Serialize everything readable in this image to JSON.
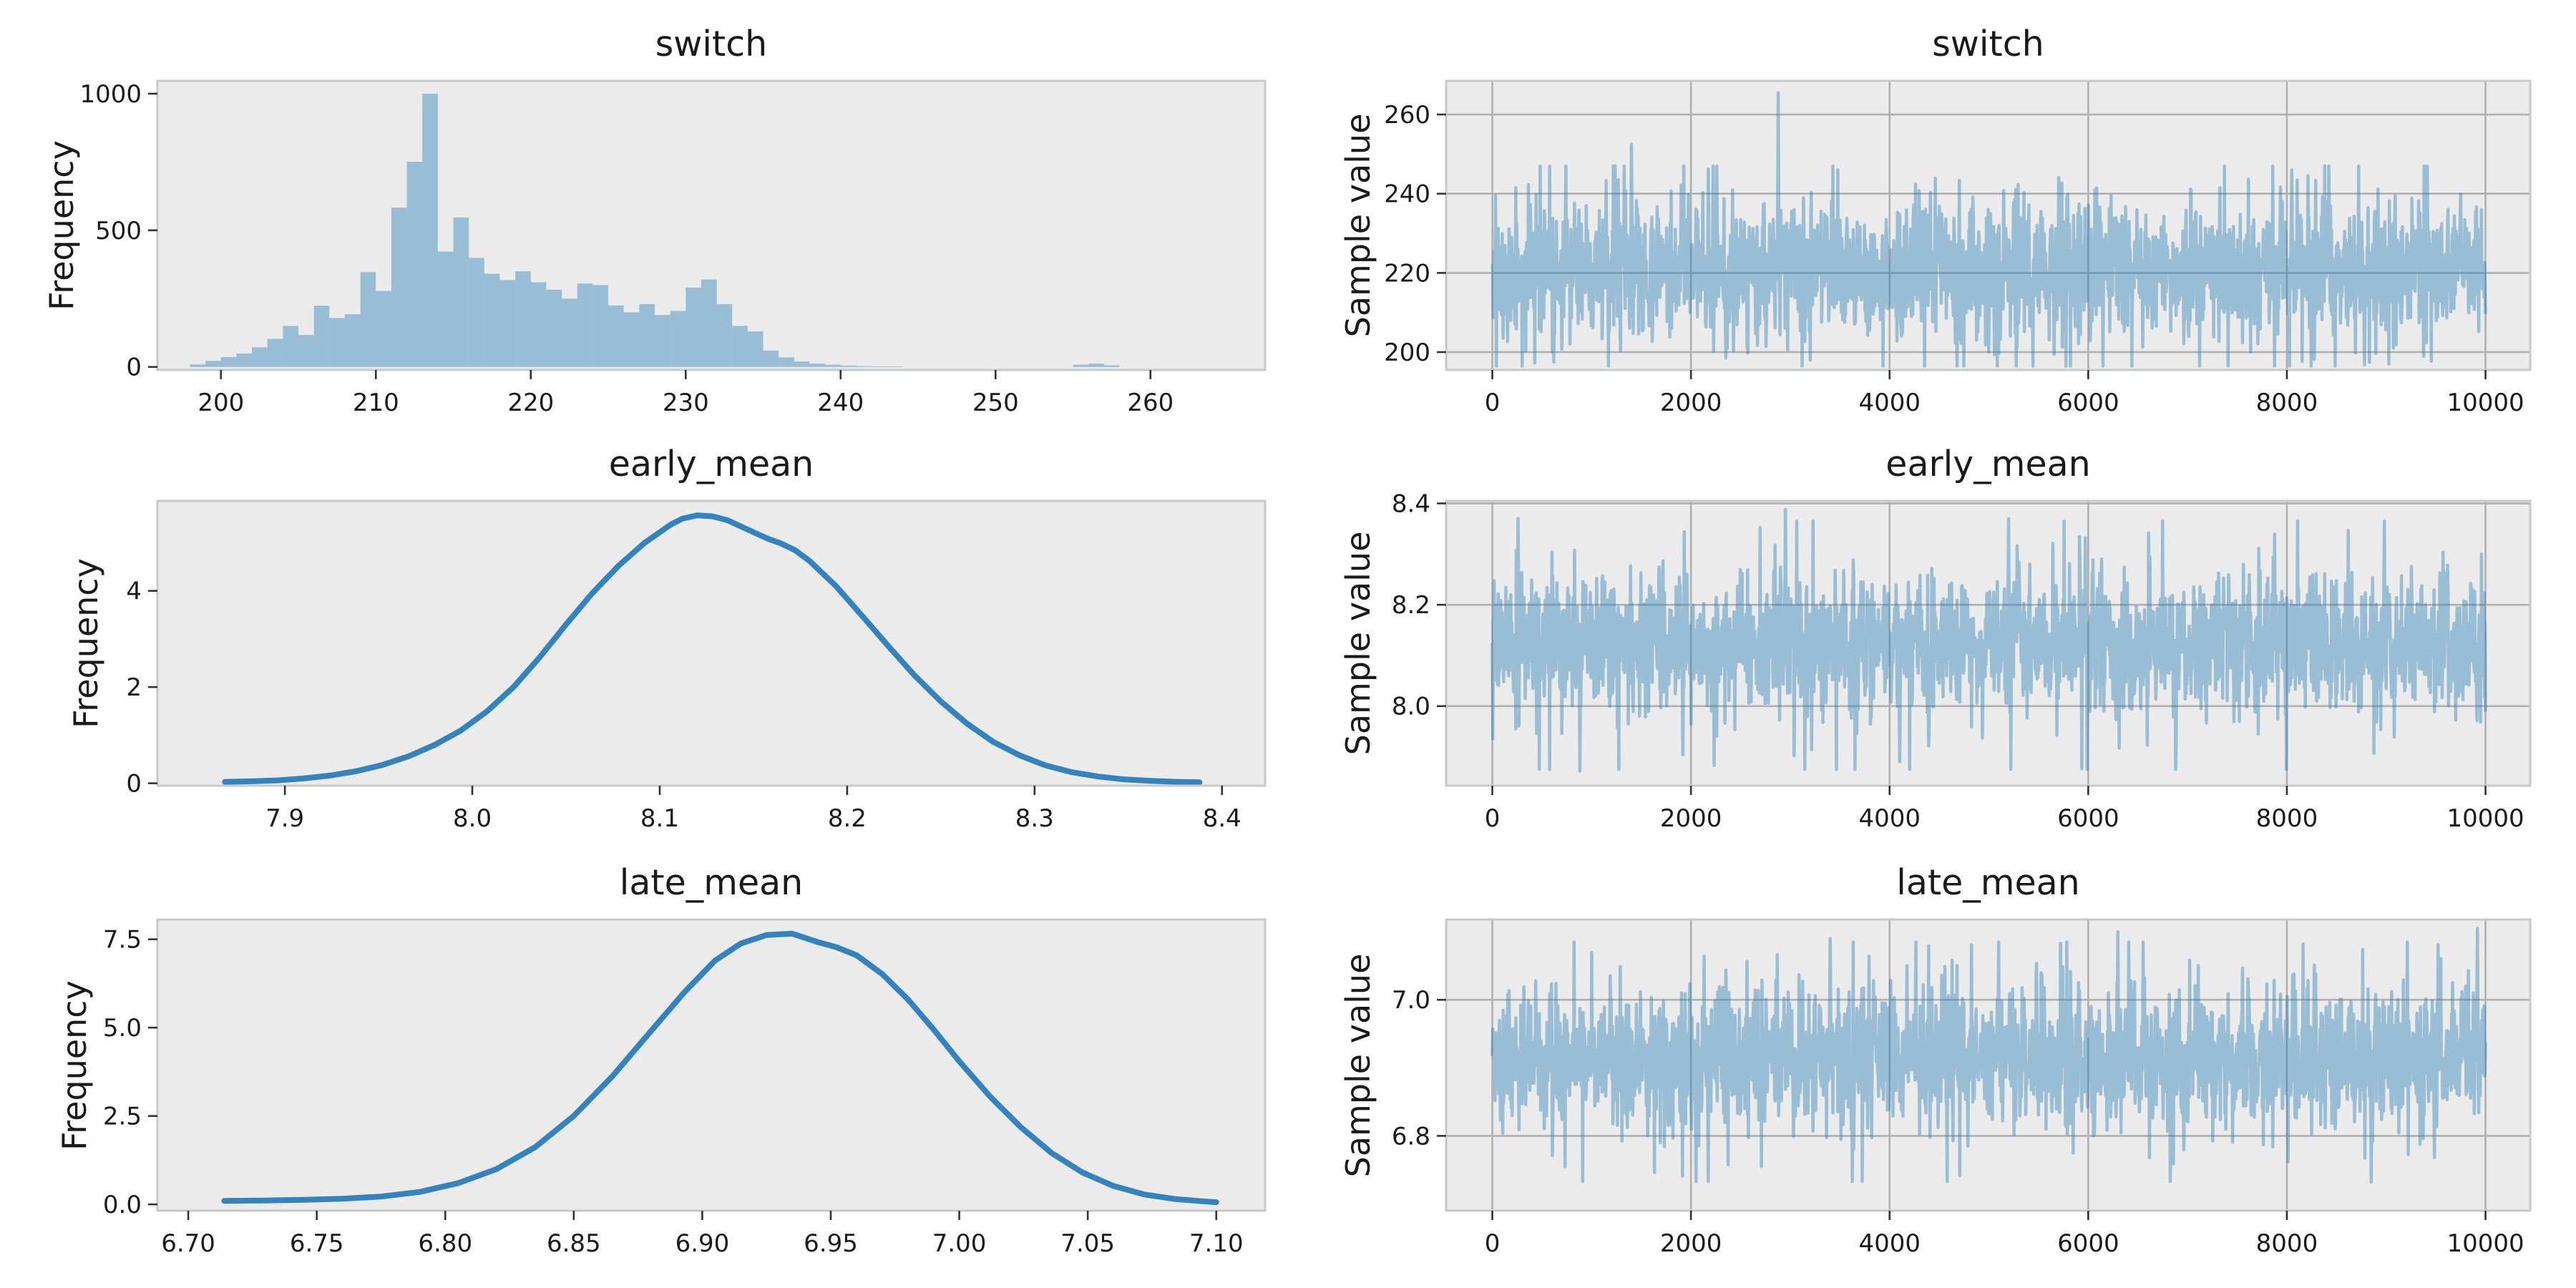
{
  "style": {
    "figure_bg": "#ffffff",
    "panel_bg": "#ebebeb",
    "spine_color": "#c8c8c8",
    "grid_color": "#b0b0b0",
    "tick_color": "#333333",
    "text_color": "#1a1a1a",
    "hist_fill": "rgba(31,119,180,0.40)",
    "trace_stroke": "rgba(31,119,180,0.40)",
    "kde_stroke": "#3583bd"
  },
  "chart_data": [
    {
      "name": "switch-histogram",
      "type": "bar",
      "title": "switch",
      "ylabel": "Frequency",
      "grid": false,
      "xlim": [
        195.9,
        267.4
      ],
      "ylim": [
        -11,
        1047
      ],
      "xtick_values": [
        200,
        210,
        220,
        230,
        240,
        250,
        260
      ],
      "xtick_labels": [
        "200",
        "210",
        "220",
        "230",
        "240",
        "250",
        "260"
      ],
      "ytick_values": [
        0,
        500,
        1000
      ],
      "ytick_labels": [
        "0",
        "500",
        "1000"
      ],
      "bins": {
        "start": 198,
        "width": 1,
        "counts": [
          9,
          22,
          36,
          49,
          72,
          103,
          150,
          117,
          224,
          179,
          193,
          347,
          278,
          583,
          751,
          1000,
          422,
          547,
          399,
          341,
          318,
          350,
          310,
          283,
          250,
          305,
          300,
          225,
          200,
          230,
          190,
          205,
          290,
          320,
          230,
          150,
          130,
          60,
          35,
          20,
          12,
          8,
          5,
          3,
          2,
          2,
          0,
          0,
          0,
          0,
          0,
          0,
          0,
          0,
          0,
          0,
          0,
          8,
          12,
          6
        ]
      }
    },
    {
      "name": "switch-trace",
      "type": "line",
      "title": "switch",
      "ylabel": "Sample value",
      "grid": true,
      "xlim": [
        -465,
        10450
      ],
      "ylim": [
        195.5,
        268.5
      ],
      "xtick_values": [
        0,
        2000,
        4000,
        6000,
        8000,
        10000
      ],
      "xtick_labels": [
        "0",
        "2000",
        "4000",
        "6000",
        "8000",
        "10000"
      ],
      "ytick_values": [
        200,
        220,
        240,
        260
      ],
      "ytick_labels": [
        "200",
        "220",
        "240",
        "260"
      ],
      "series": {
        "n_samples": 10000,
        "mean": 220.3,
        "sd": 8.3,
        "typical_min": 196.5,
        "typical_max": 247,
        "spikes_high": [
          [
            1400,
            252.5
          ],
          [
            2880,
            265.5
          ],
          [
            8050,
            246
          ]
        ],
        "spikes_low": [
          [
            620,
            197.5
          ],
          [
            2350,
            198.5
          ],
          [
            8780,
            196.8
          ]
        ]
      }
    },
    {
      "name": "early-mean-kde",
      "type": "line",
      "title": "early_mean",
      "ylabel": "Frequency",
      "grid": false,
      "xlim": [
        7.832,
        8.423
      ],
      "ylim": [
        -0.05,
        5.87
      ],
      "xtick_values": [
        7.9,
        8.0,
        8.1,
        8.2,
        8.3,
        8.4
      ],
      "xtick_labels": [
        "7.9",
        "8.0",
        "8.1",
        "8.2",
        "8.3",
        "8.4"
      ],
      "ytick_values": [
        0,
        2,
        4
      ],
      "ytick_labels": [
        "0",
        "2",
        "4"
      ],
      "points": {
        "x": [
          7.868,
          7.882,
          7.896,
          7.91,
          7.924,
          7.938,
          7.952,
          7.966,
          7.98,
          7.994,
          8.008,
          8.022,
          8.036,
          8.05,
          8.064,
          8.078,
          8.092,
          8.106,
          8.112,
          8.12,
          8.128,
          8.136,
          8.15,
          8.158,
          8.165,
          8.172,
          8.18,
          8.194,
          8.208,
          8.222,
          8.236,
          8.25,
          8.264,
          8.278,
          8.292,
          8.306,
          8.32,
          8.334,
          8.348,
          8.362,
          8.376,
          8.388
        ],
        "y": [
          0.03,
          0.04,
          0.06,
          0.1,
          0.16,
          0.25,
          0.38,
          0.56,
          0.8,
          1.1,
          1.5,
          2.0,
          2.62,
          3.3,
          3.95,
          4.52,
          5.0,
          5.38,
          5.5,
          5.57,
          5.55,
          5.47,
          5.22,
          5.08,
          4.98,
          4.85,
          4.62,
          4.1,
          3.48,
          2.85,
          2.24,
          1.7,
          1.24,
          0.86,
          0.58,
          0.37,
          0.23,
          0.14,
          0.08,
          0.05,
          0.03,
          0.02
        ]
      }
    },
    {
      "name": "early-mean-trace",
      "type": "line",
      "title": "early_mean",
      "ylabel": "Sample value",
      "grid": true,
      "xlim": [
        -465,
        10450
      ],
      "ylim": [
        7.843,
        8.405
      ],
      "xtick_values": [
        0,
        2000,
        4000,
        6000,
        8000,
        10000
      ],
      "xtick_labels": [
        "0",
        "2000",
        "4000",
        "6000",
        "8000",
        "10000"
      ],
      "ytick_values": [
        8.0,
        8.2,
        8.4
      ],
      "ytick_labels": [
        "8.0",
        "8.2",
        "8.4"
      ],
      "series": {
        "n_samples": 10000,
        "mean": 8.123,
        "sd": 0.066,
        "typical_min": 7.875,
        "typical_max": 8.365,
        "spikes_high": [
          [
            260,
            8.37
          ],
          [
            2950,
            8.388
          ],
          [
            5200,
            8.37
          ]
        ],
        "spikes_low": [
          [
            880,
            7.872
          ],
          [
            4100,
            7.89
          ]
        ]
      }
    },
    {
      "name": "late-mean-kde",
      "type": "line",
      "title": "late_mean",
      "ylabel": "Frequency",
      "grid": false,
      "xlim": [
        6.688,
        7.119
      ],
      "ylim": [
        -0.18,
        8.06
      ],
      "xtick_values": [
        6.7,
        6.75,
        6.8,
        6.85,
        6.9,
        6.95,
        7.0,
        7.05,
        7.1
      ],
      "xtick_labels": [
        "6.70",
        "6.75",
        "6.80",
        "6.85",
        "6.90",
        "6.95",
        "7.00",
        "7.05",
        "7.10"
      ],
      "ytick_values": [
        0,
        2.5,
        5.0,
        7.5
      ],
      "ytick_labels": [
        "0.0",
        "2.5",
        "5.0",
        "7.5"
      ],
      "points": {
        "x": [
          6.714,
          6.73,
          6.745,
          6.76,
          6.775,
          6.79,
          6.805,
          6.82,
          6.835,
          6.85,
          6.865,
          6.88,
          6.893,
          6.905,
          6.915,
          6.925,
          6.935,
          6.945,
          6.952,
          6.96,
          6.97,
          6.98,
          6.99,
          7.0,
          7.012,
          7.024,
          7.036,
          7.048,
          7.06,
          7.072,
          7.084,
          7.096,
          7.1
        ],
        "y": [
          0.1,
          0.11,
          0.13,
          0.16,
          0.22,
          0.35,
          0.6,
          1.0,
          1.62,
          2.5,
          3.62,
          4.9,
          6.0,
          6.9,
          7.38,
          7.62,
          7.66,
          7.42,
          7.28,
          7.05,
          6.52,
          5.8,
          4.95,
          4.05,
          3.05,
          2.18,
          1.45,
          0.9,
          0.52,
          0.28,
          0.15,
          0.08,
          0.06
        ]
      }
    },
    {
      "name": "late-mean-trace",
      "type": "line",
      "title": "late_mean",
      "ylabel": "Sample value",
      "grid": true,
      "xlim": [
        -465,
        10450
      ],
      "ylim": [
        6.69,
        7.118
      ],
      "xtick_values": [
        0,
        2000,
        4000,
        6000,
        8000,
        10000
      ],
      "xtick_labels": [
        "0",
        "2000",
        "4000",
        "6000",
        "8000",
        "10000"
      ],
      "ytick_values": [
        6.8,
        7.0
      ],
      "ytick_labels": [
        "6.8",
        "7.0"
      ],
      "series": {
        "n_samples": 10000,
        "mean": 6.913,
        "sd": 0.049,
        "typical_min": 6.733,
        "typical_max": 7.085,
        "spikes_high": [
          [
            3400,
            7.09
          ],
          [
            6300,
            7.1
          ],
          [
            9920,
            7.105
          ]
        ],
        "spikes_low": [
          [
            2050,
            6.733
          ],
          [
            8850,
            6.732
          ]
        ]
      }
    }
  ]
}
